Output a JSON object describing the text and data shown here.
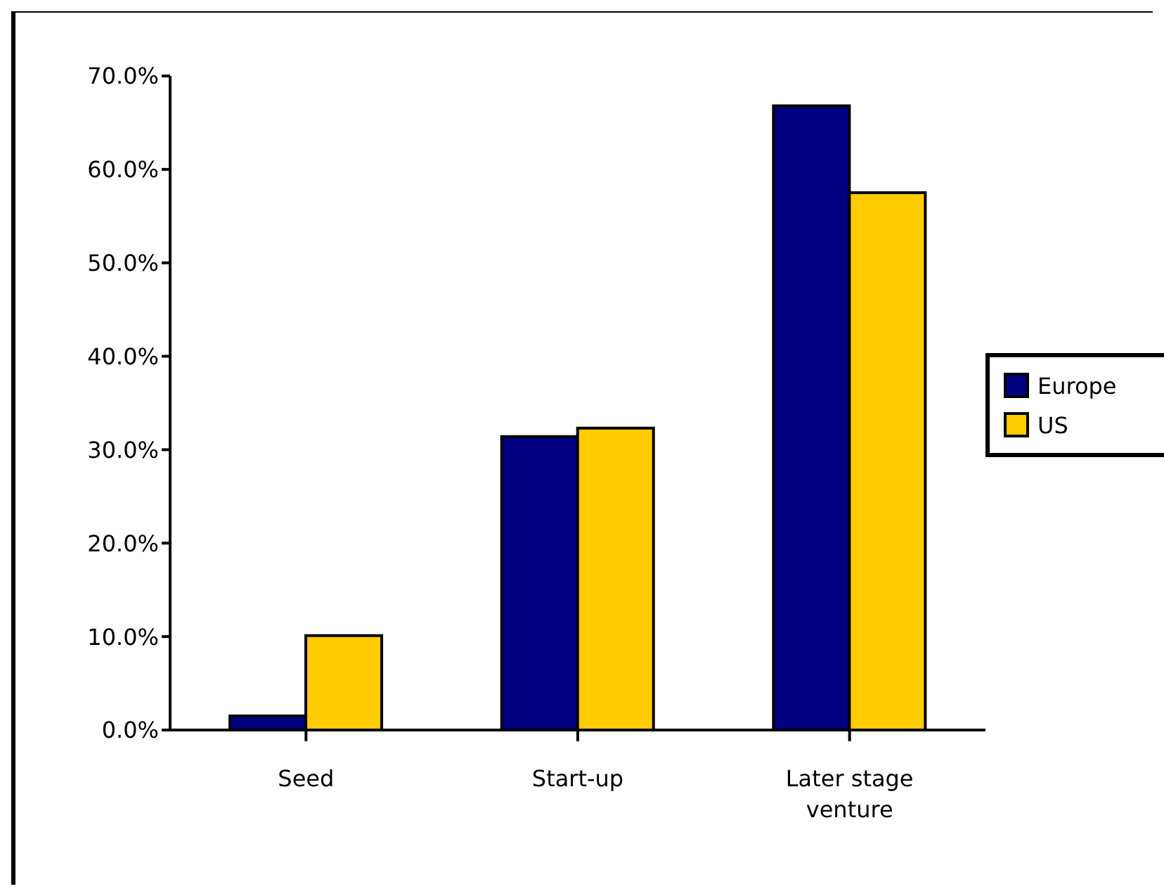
{
  "chart_data": {
    "type": "bar",
    "categories": [
      "Seed",
      "Start-up",
      "Later stage venture"
    ],
    "series": [
      {
        "name": "Europe",
        "color": "#000080",
        "values": [
          1.5,
          31.4,
          66.8
        ]
      },
      {
        "name": "US",
        "color": "#ffcc00",
        "values": [
          10.1,
          32.3,
          57.5
        ]
      }
    ],
    "ylim": [
      0,
      70
    ],
    "yticks": [
      {
        "value": 0,
        "label": "0.0%"
      },
      {
        "value": 10,
        "label": "10.0%"
      },
      {
        "value": 20,
        "label": "20.0%"
      },
      {
        "value": 30,
        "label": "30.0%"
      },
      {
        "value": 40,
        "label": "40.0%"
      },
      {
        "value": 50,
        "label": "50.0%"
      },
      {
        "value": 60,
        "label": "60.0%"
      },
      {
        "value": 70,
        "label": "70.0%"
      }
    ],
    "grid": false,
    "legend": "right"
  }
}
